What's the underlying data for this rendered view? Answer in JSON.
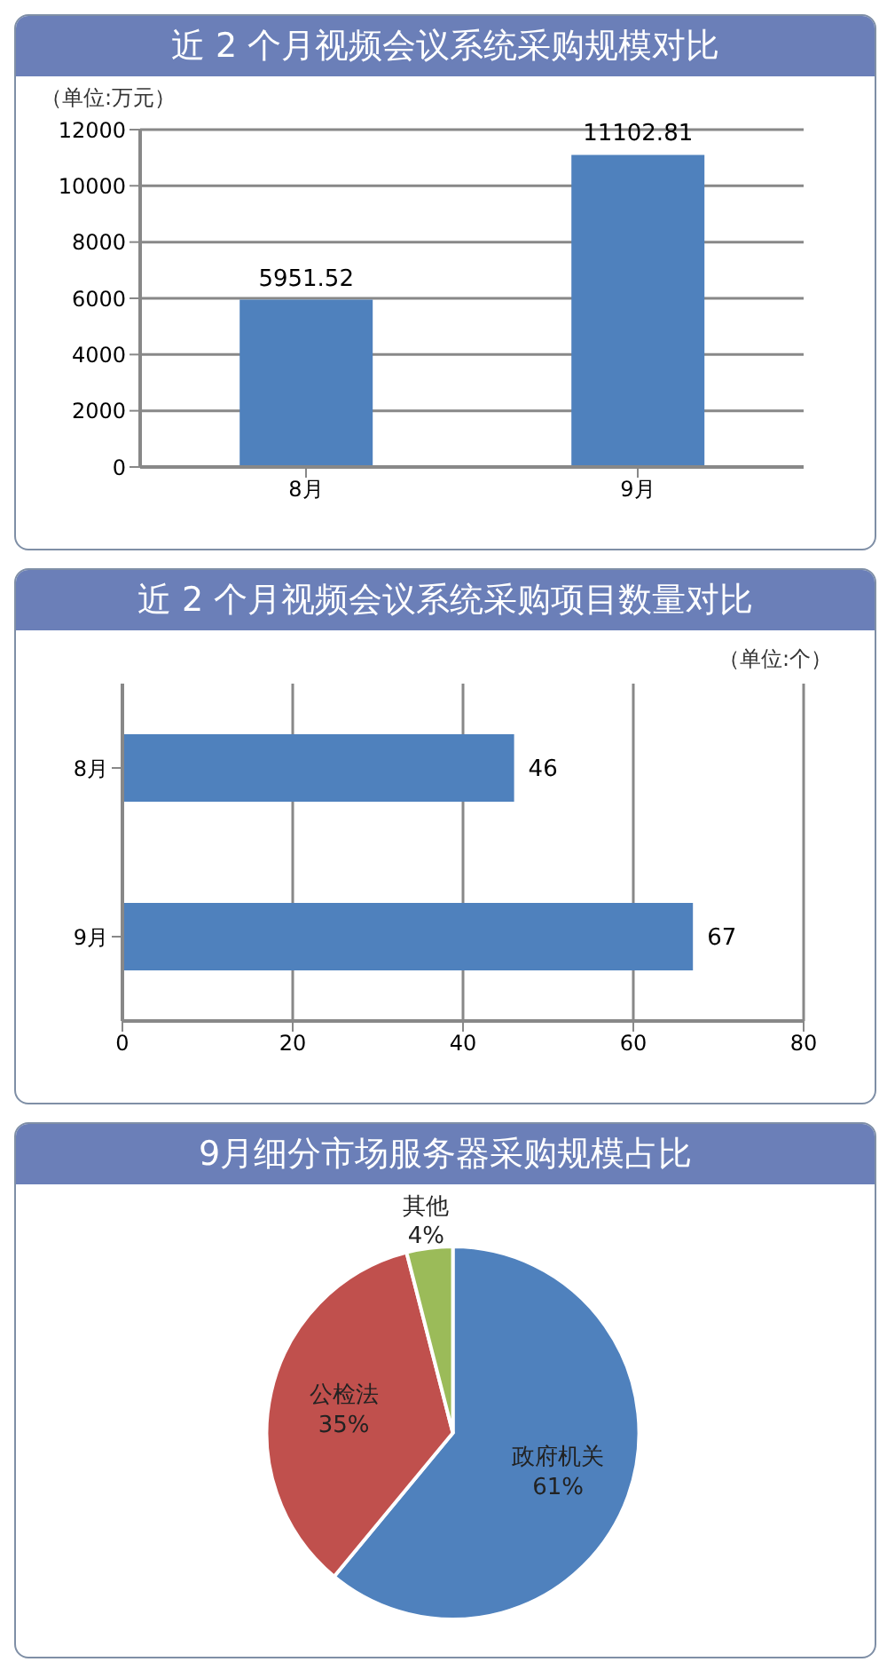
{
  "chart_data": [
    {
      "type": "bar",
      "title": "近 2 个月视频会议系统采购规模对比",
      "annotations": [
        "（单位:万元）"
      ],
      "categories": [
        "8月",
        "9月"
      ],
      "values": [
        5951.52,
        11102.81
      ],
      "color": "#4f81bd",
      "ylim": [
        0,
        12000
      ],
      "yticks": [
        0,
        2000,
        4000,
        6000,
        8000,
        10000,
        12000
      ],
      "grid": "y",
      "data_labels": true
    },
    {
      "type": "bar",
      "orientation": "horizontal",
      "title": "近 2 个月视频会议系统采购项目数量对比",
      "annotations": [
        "（单位:个）"
      ],
      "categories": [
        "8月",
        "9月"
      ],
      "values": [
        46,
        67
      ],
      "color": "#4f81bd",
      "xlim": [
        0,
        80
      ],
      "xticks": [
        0,
        20,
        40,
        60,
        80
      ],
      "grid": "x",
      "data_labels": true
    },
    {
      "type": "pie",
      "title": "9月细分市场服务器采购规模占比",
      "categories": [
        "政府机关",
        "公检法",
        "其他"
      ],
      "values": [
        61,
        35,
        4
      ],
      "value_labels": [
        "61%",
        "35%",
        "4%"
      ],
      "colors": [
        "#4f81bd",
        "#c0504d",
        "#9bbb59"
      ]
    }
  ]
}
